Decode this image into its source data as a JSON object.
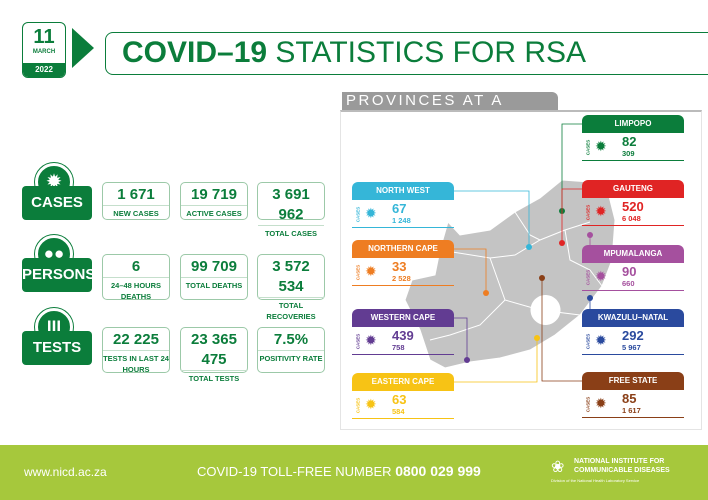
{
  "header": {
    "day": "11",
    "month": "MARCH",
    "year": "2022",
    "title_bold": "COVID–19",
    "title_rest": "STATISTICS FOR RSA"
  },
  "colors": {
    "primary": "#0b7d3b",
    "footer": "#a6c83c",
    "map": "#c4c4c4"
  },
  "stats": [
    {
      "label": "CASES",
      "icon": "virus-icon",
      "items": [
        {
          "value": "1 671",
          "label": "NEW CASES"
        },
        {
          "value": "19 719",
          "label": "ACTIVE CASES"
        },
        {
          "value": "3 691 962",
          "label": "TOTAL CASES"
        }
      ]
    },
    {
      "label": "PERSONS",
      "icon": "people-icon",
      "items": [
        {
          "value": "6",
          "label": "24–48 HOURS DEATHS"
        },
        {
          "value": "99 709",
          "label": "TOTAL DEATHS"
        },
        {
          "value": "3 572 534",
          "label": "TOTAL RECOVERIES"
        }
      ]
    },
    {
      "label": "TESTS",
      "icon": "test-tubes-icon",
      "items": [
        {
          "value": "22 225",
          "label": "TESTS IN LAST 24 HOURS"
        },
        {
          "value": "23 365 475",
          "label": "TOTAL TESTS"
        },
        {
          "value": "7.5%",
          "label": "POSITIVITY RATE"
        }
      ]
    }
  ],
  "provinces_title": "PROVINCES AT A GLANCE",
  "cases_label": "CASES",
  "provinces": [
    {
      "name": "LIMPOPO",
      "new": "82",
      "total": "309",
      "color": "#0b7d3b"
    },
    {
      "name": "NORTH WEST",
      "new": "67",
      "total": "1 248",
      "color": "#35b6d8"
    },
    {
      "name": "GAUTENG",
      "new": "520",
      "total": "6 048",
      "color": "#e02424"
    },
    {
      "name": "NORTHERN CAPE",
      "new": "33",
      "total": "2 528",
      "color": "#ee7d22"
    },
    {
      "name": "MPUMALANGA",
      "new": "90",
      "total": "660",
      "color": "#a5509e"
    },
    {
      "name": "WESTERN CAPE",
      "new": "439",
      "total": "758",
      "color": "#623c92"
    },
    {
      "name": "KWAZULU–NATAL",
      "new": "292",
      "total": "5 967",
      "color": "#2a4a9e"
    },
    {
      "name": "EASTERN CAPE",
      "new": "63",
      "total": "584",
      "color": "#f7c315"
    },
    {
      "name": "FREE STATE",
      "new": "85",
      "total": "1 617",
      "color": "#8a3f17"
    }
  ],
  "footer": {
    "website": "www.nicd.ac.za",
    "tollfree_label": "COVID-19 TOLL-FREE NUMBER",
    "tollfree_number": "0800 029 999",
    "org_line1": "NATIONAL INSTITUTE FOR",
    "org_line2": "COMMUNICABLE DISEASES",
    "org_sub": "Division of the National Health Laboratory Service"
  }
}
